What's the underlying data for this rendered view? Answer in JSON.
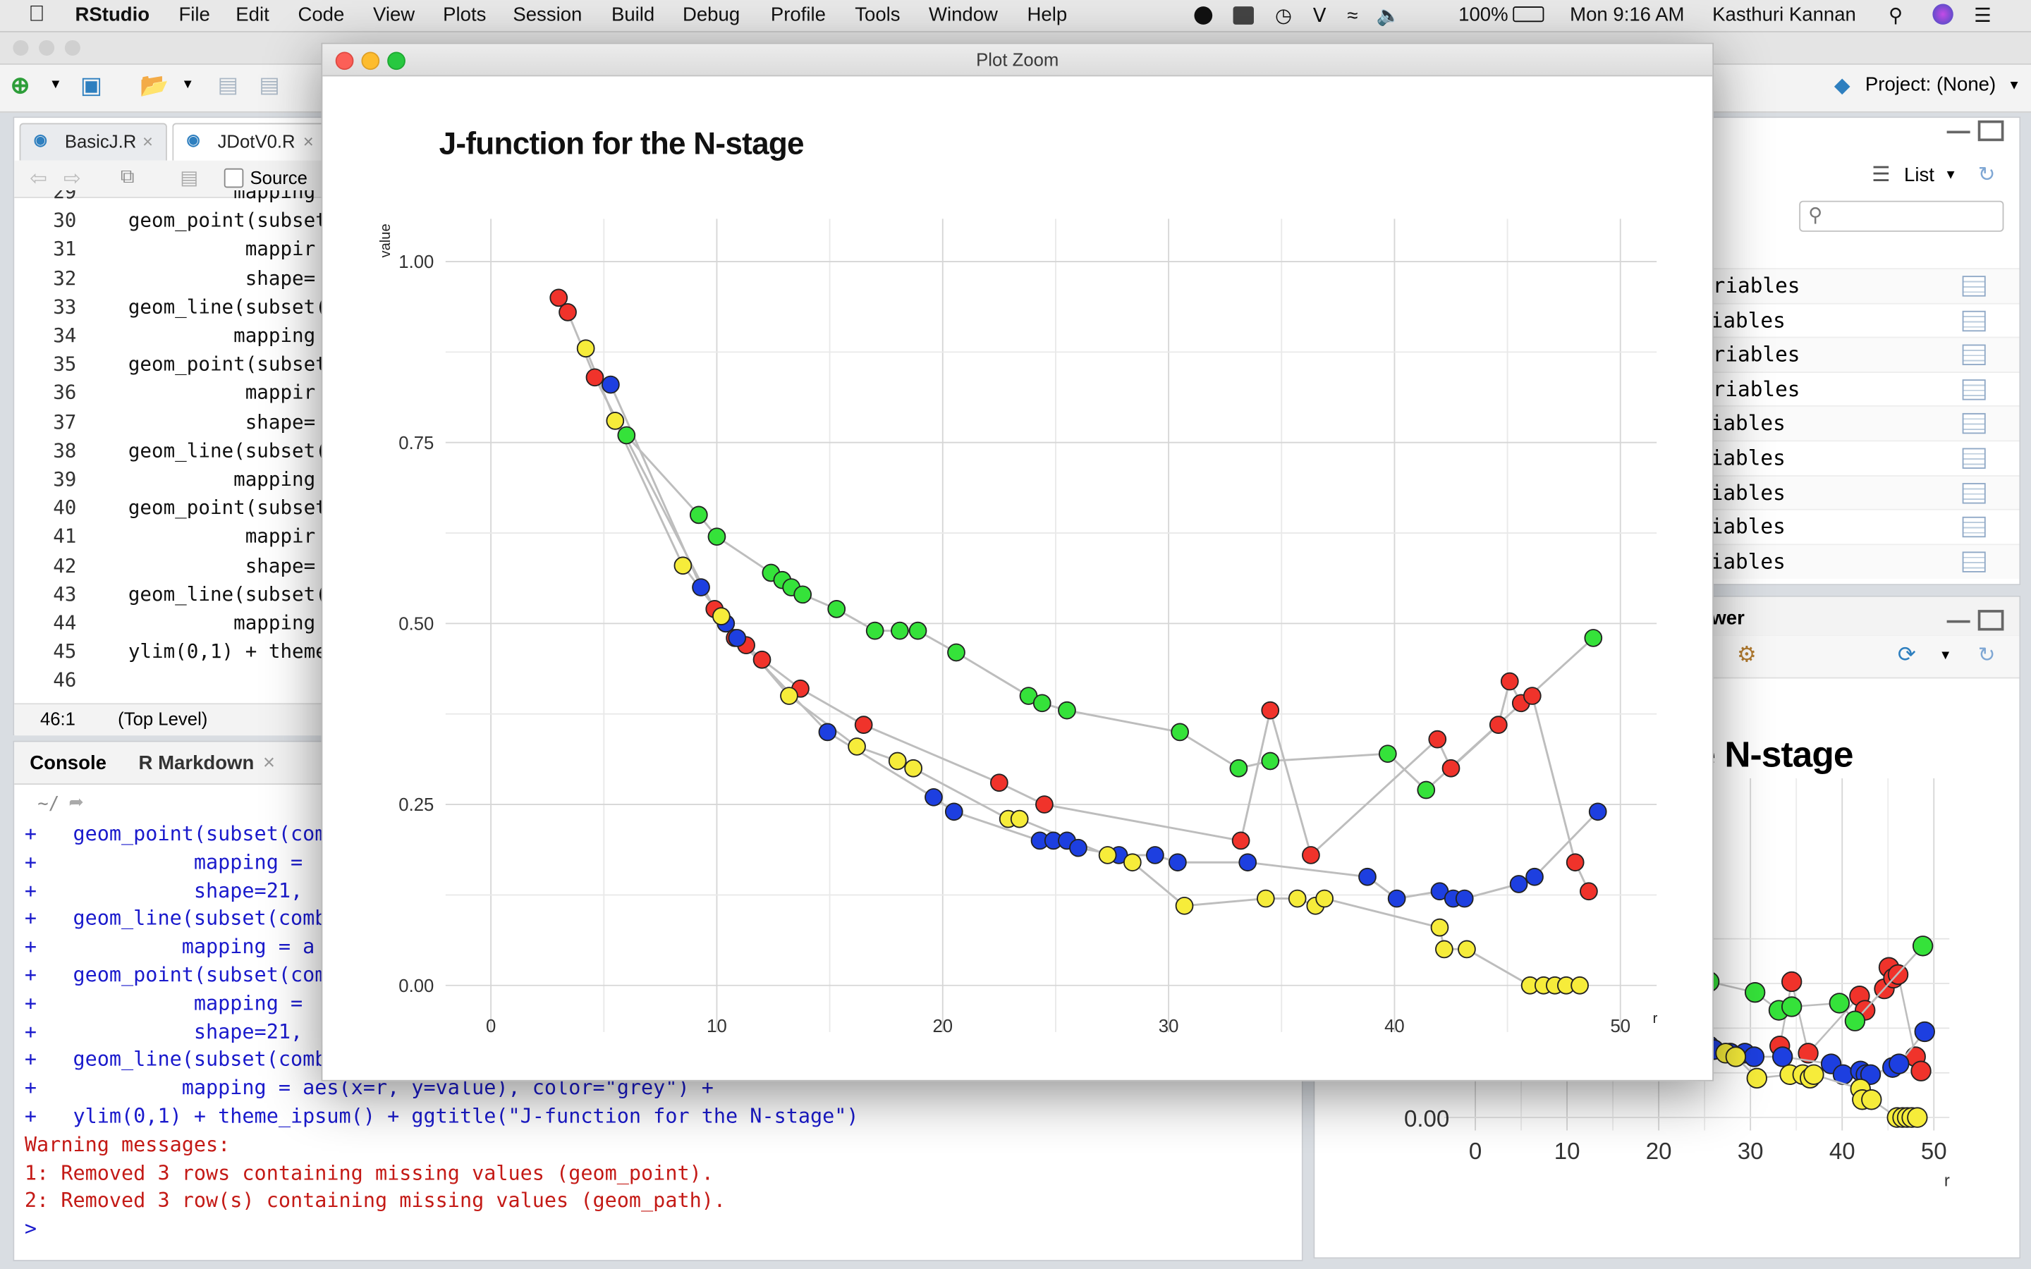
{
  "menubar": {
    "app": "RStudio",
    "items": [
      "File",
      "Edit",
      "Code",
      "View",
      "Plots",
      "Session",
      "Build",
      "Debug",
      "Profile",
      "Tools",
      "Window",
      "Help"
    ],
    "battery": "100%",
    "clock": "Mon 9:16 AM",
    "user": "Kasthuri Kannan"
  },
  "toolbar": {
    "project": "Project: (None)"
  },
  "editor": {
    "tabs": [
      "BasicJ.R",
      "JDotV0.R"
    ],
    "source_label": "Source",
    "lines": [
      {
        "n": "29",
        "t": "         mapping"
      },
      {
        "n": "30",
        "t": "geom_point(subset"
      },
      {
        "n": "31",
        "t": "          mappir"
      },
      {
        "n": "32",
        "t": "          shape="
      },
      {
        "n": "33",
        "t": "geom_line(subset("
      },
      {
        "n": "34",
        "t": "         mapping"
      },
      {
        "n": "35",
        "t": "geom_point(subset"
      },
      {
        "n": "36",
        "t": "          mappir"
      },
      {
        "n": "37",
        "t": "          shape="
      },
      {
        "n": "38",
        "t": "geom_line(subset("
      },
      {
        "n": "39",
        "t": "         mapping"
      },
      {
        "n": "40",
        "t": "geom_point(subset"
      },
      {
        "n": "41",
        "t": "          mappir"
      },
      {
        "n": "42",
        "t": "          shape="
      },
      {
        "n": "43",
        "t": "geom_line(subset("
      },
      {
        "n": "44",
        "t": "         mapping"
      },
      {
        "n": "45",
        "t": "ylim(0,1) + theme"
      },
      {
        "n": "46",
        "t": ""
      }
    ],
    "status_pos": "46:1",
    "status_level": "(Top Level)"
  },
  "console": {
    "tabs": [
      "Console",
      "R Markdown"
    ],
    "path": "~/",
    "lines": [
      {
        "t": "+   geom_point(subset(com",
        "c": "blue"
      },
      {
        "t": "+             mapping = ",
        "c": "blue"
      },
      {
        "t": "+             shape=21, ",
        "c": "blue"
      },
      {
        "t": "+   geom_line(subset(comb",
        "c": "blue"
      },
      {
        "t": "+            mapping = a",
        "c": "blue"
      },
      {
        "t": "+   geom_point(subset(com",
        "c": "blue"
      },
      {
        "t": "+             mapping = ",
        "c": "blue"
      },
      {
        "t": "+             shape=21, ",
        "c": "blue"
      },
      {
        "t": "+   geom_line(subset(comb",
        "c": "blue"
      },
      {
        "t": "+            mapping = aes(x=r, y=value), color=\"grey\") +",
        "c": "blue"
      },
      {
        "t": "+   ylim(0,1) + theme_ipsum() + ggtitle(\"J-function for the N-stage\")",
        "c": "blue"
      },
      {
        "t": "Warning messages:",
        "c": "red"
      },
      {
        "t": "1: Removed 3 rows containing missing values (geom_point).",
        "c": "red"
      },
      {
        "t": "2: Removed 3 row(s) containing missing values (geom_path).",
        "c": "red"
      },
      {
        "t": ">",
        "c": "blue"
      }
    ]
  },
  "environment": {
    "view": "List",
    "rows": [
      "variables",
      "riables",
      "variables",
      "variables",
      "riables",
      "riables",
      "riables",
      "riables",
      "riables"
    ]
  },
  "viewer": {
    "tab": "wer",
    "title_fragment": "e N-stage",
    "ytick": "0.00",
    "xticks": [
      "0",
      "10",
      "20",
      "30",
      "40",
      "50"
    ],
    "xlabel": "r"
  },
  "zoom_window": {
    "title": "Plot Zoom"
  },
  "colors": {
    "red": "#f0332b",
    "green": "#35e23a",
    "blue": "#1d3fe0",
    "yellow": "#f6ec3a",
    "line": "#bdbdbd"
  },
  "chart_data": {
    "type": "scatter",
    "title": "J-function for the N-stage",
    "xlabel": "r",
    "ylabel": "value",
    "xlim": [
      0,
      50
    ],
    "ylim": [
      0,
      1
    ],
    "xticks": [
      0,
      10,
      20,
      30,
      40,
      50
    ],
    "yticks": [
      0.0,
      0.25,
      0.5,
      0.75,
      1.0
    ],
    "ytick_labels": [
      "0.00",
      "0.25",
      "0.50",
      "0.75",
      "1.00"
    ],
    "grid": true,
    "series": [
      {
        "color": "red",
        "points": [
          [
            3.0,
            0.95
          ],
          [
            3.4,
            0.93
          ],
          [
            4.6,
            0.84
          ],
          [
            9.9,
            0.52
          ],
          [
            10.8,
            0.48
          ],
          [
            11.3,
            0.47
          ],
          [
            12.0,
            0.45
          ],
          [
            13.7,
            0.41
          ],
          [
            16.5,
            0.36
          ],
          [
            22.5,
            0.28
          ],
          [
            24.5,
            0.25
          ],
          [
            33.2,
            0.2
          ],
          [
            34.5,
            0.38
          ],
          [
            36.3,
            0.18
          ],
          [
            41.9,
            0.34
          ],
          [
            42.5,
            0.3
          ],
          [
            44.6,
            0.36
          ],
          [
            45.1,
            0.42
          ],
          [
            45.6,
            0.39
          ],
          [
            46.1,
            0.4
          ],
          [
            48.0,
            0.17
          ],
          [
            48.6,
            0.13
          ]
        ]
      },
      {
        "color": "green",
        "points": [
          [
            6.0,
            0.76
          ],
          [
            9.2,
            0.65
          ],
          [
            10.0,
            0.62
          ],
          [
            12.4,
            0.57
          ],
          [
            12.9,
            0.56
          ],
          [
            13.3,
            0.55
          ],
          [
            13.8,
            0.54
          ],
          [
            15.3,
            0.52
          ],
          [
            17.0,
            0.49
          ],
          [
            18.1,
            0.49
          ],
          [
            18.9,
            0.49
          ],
          [
            20.6,
            0.46
          ],
          [
            23.8,
            0.4
          ],
          [
            24.4,
            0.39
          ],
          [
            25.5,
            0.38
          ],
          [
            30.5,
            0.35
          ],
          [
            33.1,
            0.3
          ],
          [
            34.5,
            0.31
          ],
          [
            39.7,
            0.32
          ],
          [
            41.4,
            0.27
          ],
          [
            48.8,
            0.48
          ]
        ]
      },
      {
        "color": "blue",
        "points": [
          [
            5.3,
            0.83
          ],
          [
            9.3,
            0.55
          ],
          [
            10.4,
            0.5
          ],
          [
            10.9,
            0.48
          ],
          [
            14.9,
            0.35
          ],
          [
            19.6,
            0.26
          ],
          [
            20.5,
            0.24
          ],
          [
            24.3,
            0.2
          ],
          [
            24.9,
            0.2
          ],
          [
            25.5,
            0.2
          ],
          [
            26.0,
            0.19
          ],
          [
            27.8,
            0.18
          ],
          [
            29.4,
            0.18
          ],
          [
            30.4,
            0.17
          ],
          [
            33.5,
            0.17
          ],
          [
            38.8,
            0.15
          ],
          [
            40.1,
            0.12
          ],
          [
            42.0,
            0.13
          ],
          [
            42.6,
            0.12
          ],
          [
            43.1,
            0.12
          ],
          [
            45.5,
            0.14
          ],
          [
            46.2,
            0.15
          ],
          [
            49.0,
            0.24
          ]
        ]
      },
      {
        "color": "yellow",
        "points": [
          [
            4.2,
            0.88
          ],
          [
            5.5,
            0.78
          ],
          [
            8.5,
            0.58
          ],
          [
            10.2,
            0.51
          ],
          [
            13.2,
            0.4
          ],
          [
            16.2,
            0.33
          ],
          [
            18.0,
            0.31
          ],
          [
            18.7,
            0.3
          ],
          [
            22.9,
            0.23
          ],
          [
            23.4,
            0.23
          ],
          [
            27.3,
            0.18
          ],
          [
            28.4,
            0.17
          ],
          [
            30.7,
            0.11
          ],
          [
            34.3,
            0.12
          ],
          [
            35.7,
            0.12
          ],
          [
            36.5,
            0.11
          ],
          [
            36.9,
            0.12
          ],
          [
            42.0,
            0.08
          ],
          [
            42.2,
            0.05
          ],
          [
            43.2,
            0.05
          ],
          [
            46.0,
            0.0
          ],
          [
            46.6,
            0.0
          ],
          [
            47.1,
            0.0
          ],
          [
            47.6,
            0.0
          ],
          [
            48.2,
            0.0
          ]
        ]
      }
    ]
  }
}
